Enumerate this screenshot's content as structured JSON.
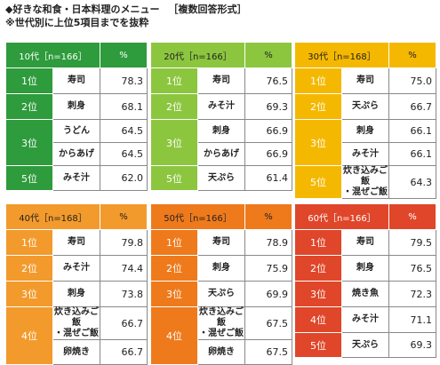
{
  "title": {
    "line1": "◆好きな和食・日本料理のメニュー",
    "line1_note": "［複数回答形式］",
    "line2": "※世代別に上位5項目までを抜粋"
  },
  "pct_label": "%",
  "panels": [
    {
      "label": "10代［n=166］",
      "rows": [
        {
          "rank": "1位",
          "item": "寿司",
          "value": "78.3"
        },
        {
          "rank": "2位",
          "item": "刺身",
          "value": "68.1"
        },
        {
          "rank": "3位",
          "item": "うどん",
          "value": "64.5"
        },
        {
          "rank": "",
          "item": "からあげ",
          "value": "64.5"
        },
        {
          "rank": "5位",
          "item": "みそ汁",
          "value": "62.0"
        }
      ]
    },
    {
      "label": "20代［n=166］",
      "rows": [
        {
          "rank": "1位",
          "item": "寿司",
          "value": "76.5"
        },
        {
          "rank": "2位",
          "item": "みそ汁",
          "value": "69.3"
        },
        {
          "rank": "3位",
          "item": "刺身",
          "value": "66.9"
        },
        {
          "rank": "",
          "item": "からあげ",
          "value": "66.9"
        },
        {
          "rank": "5位",
          "item": "天ぷら",
          "value": "61.4"
        }
      ]
    },
    {
      "label": "30代［n=168］",
      "rows": [
        {
          "rank": "1位",
          "item": "寿司",
          "value": "75.0"
        },
        {
          "rank": "2位",
          "item": "天ぷら",
          "value": "66.7"
        },
        {
          "rank": "3位",
          "item": "刺身",
          "value": "66.1"
        },
        {
          "rank": "",
          "item": "みそ汁",
          "value": "66.1"
        },
        {
          "rank": "5位",
          "item": "炊き込みご飯\n・混ぜご飯",
          "value": "64.3"
        }
      ]
    },
    {
      "label": "40代［n=168］",
      "rows": [
        {
          "rank": "1位",
          "item": "寿司",
          "value": "79.8"
        },
        {
          "rank": "2位",
          "item": "みそ汁",
          "value": "74.4"
        },
        {
          "rank": "3位",
          "item": "刺身",
          "value": "73.8"
        },
        {
          "rank": "4位",
          "item": "炊き込みご飯\n・混ぜご飯",
          "value": "66.7"
        },
        {
          "rank": "",
          "item": "卵焼き",
          "value": "66.7"
        }
      ]
    },
    {
      "label": "50代［n=166］",
      "rows": [
        {
          "rank": "1位",
          "item": "寿司",
          "value": "78.9"
        },
        {
          "rank": "2位",
          "item": "刺身",
          "value": "75.9"
        },
        {
          "rank": "3位",
          "item": "天ぷら",
          "value": "69.9"
        },
        {
          "rank": "4位",
          "item": "炊き込みご飯\n・混ぜご飯",
          "value": "67.5"
        },
        {
          "rank": "",
          "item": "卵焼き",
          "value": "67.5"
        }
      ]
    },
    {
      "label": "60代［n=166］",
      "rows": [
        {
          "rank": "1位",
          "item": "寿司",
          "value": "79.5"
        },
        {
          "rank": "2位",
          "item": "刺身",
          "value": "76.5"
        },
        {
          "rank": "3位",
          "item": "焼き魚",
          "value": "72.3"
        },
        {
          "rank": "4位",
          "item": "みそ汁",
          "value": "71.1"
        },
        {
          "rank": "5位",
          "item": "天ぷら",
          "value": "69.3"
        }
      ]
    }
  ],
  "colors": {
    "panel_10s": "#2e9b3c",
    "panel_20s": "#8cc63f",
    "panel_30s": "#f5b800",
    "panel_40s": "#f39a2c",
    "panel_50s": "#ee7a1c",
    "panel_60s": "#e0462a"
  }
}
